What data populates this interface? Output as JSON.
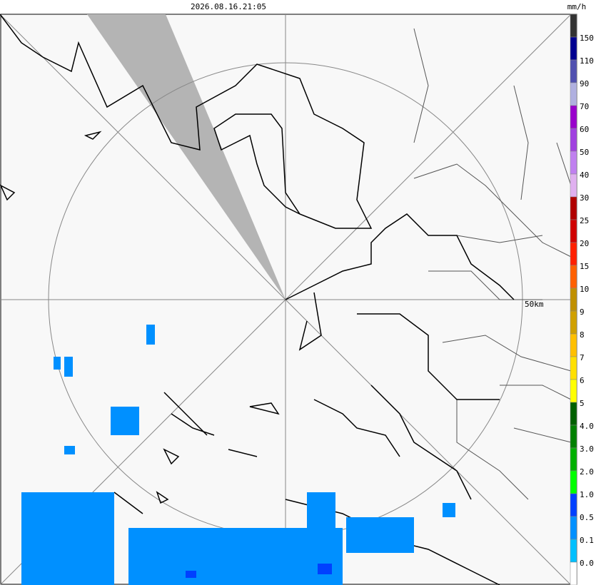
{
  "header": {
    "timestamp": "2026.08.16.21:05"
  },
  "map": {
    "range_label": "50km"
  },
  "legend": {
    "unit": "mm/h",
    "labels": [
      "150",
      "110",
      "90",
      "70",
      "60",
      "50",
      "40",
      "30",
      "25",
      "20",
      "15",
      "10",
      "9",
      "8",
      "7",
      "6",
      "5",
      "4.0",
      "3.0",
      "2.0",
      "1.0",
      "0.5",
      "0.1",
      "0.0"
    ],
    "colors": [
      "#333333",
      "#000090",
      "#5050b0",
      "#b0b0e0",
      "#9900cc",
      "#a040e0",
      "#c080f0",
      "#e0b0f0",
      "#b00000",
      "#d00000",
      "#ff2000",
      "#ff6000",
      "#c09000",
      "#d0a000",
      "#ffc000",
      "#ffe000",
      "#ffff00",
      "#006000",
      "#008000",
      "#00b000",
      "#00ff00",
      "#0040ff",
      "#0090ff",
      "#00c0ff",
      "#ffffff"
    ]
  }
}
